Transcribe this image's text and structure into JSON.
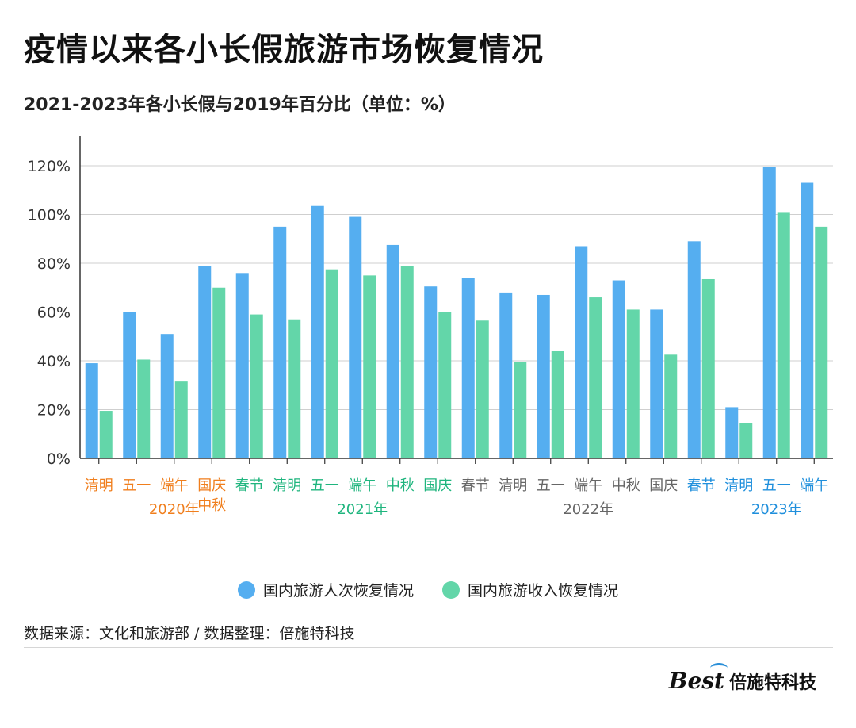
{
  "title": "疫情以来各小长假旅游市场恢复情况",
  "subtitle": "2021-2023年各小长假与2019年百分比（单位：%）",
  "colors": {
    "series_trips": "#55aef0",
    "series_revenue": "#63d6a9",
    "year_2020": "#f07e1c",
    "year_2021": "#1fb57e",
    "year_2022": "#666666",
    "year_2023": "#1f8fdc"
  },
  "chart_data": {
    "type": "bar",
    "y_ticks": [
      "0%",
      "20%",
      "40%",
      "60%",
      "80%",
      "100%",
      "120%"
    ],
    "ylim": [
      0,
      130
    ],
    "grid": true,
    "legend_position": "bottom",
    "categories": [
      "清明",
      "五一",
      "端午",
      "国庆中秋",
      "春节",
      "清明",
      "五一",
      "端午",
      "中秋",
      "国庆",
      "春节",
      "清明",
      "五一",
      "端午",
      "中秋",
      "国庆",
      "春节",
      "清明",
      "五一",
      "端午"
    ],
    "category_labels": [
      [
        "清明"
      ],
      [
        "五一"
      ],
      [
        "端午"
      ],
      [
        "国庆",
        "中秋"
      ],
      [
        "春节"
      ],
      [
        "清明"
      ],
      [
        "五一"
      ],
      [
        "端午"
      ],
      [
        "中秋"
      ],
      [
        "国庆"
      ],
      [
        "春节"
      ],
      [
        "清明"
      ],
      [
        "五一"
      ],
      [
        "端午"
      ],
      [
        "中秋"
      ],
      [
        "国庆"
      ],
      [
        "春节"
      ],
      [
        "清明"
      ],
      [
        "五一"
      ],
      [
        "端午"
      ]
    ],
    "category_years": [
      "2020年",
      "2020年",
      "2020年",
      "2020年",
      "2021年",
      "2021年",
      "2021年",
      "2021年",
      "2021年",
      "2021年",
      "2022年",
      "2022年",
      "2022年",
      "2022年",
      "2022年",
      "2022年",
      "2023年",
      "2023年",
      "2023年",
      "2023年"
    ],
    "year_groups": [
      {
        "label": "2020年",
        "center_index": 2,
        "color_key": "year_2020"
      },
      {
        "label": "2021年",
        "center_index": 7,
        "color_key": "year_2021"
      },
      {
        "label": "2022年",
        "center_index": 13,
        "color_key": "year_2022"
      },
      {
        "label": "2023年",
        "center_index": 18,
        "color_key": "year_2023"
      }
    ],
    "series": [
      {
        "name": "国内旅游人次恢复情况",
        "color_key": "series_trips",
        "values": [
          39,
          60,
          51,
          79,
          76,
          95,
          103.5,
          99,
          87.5,
          70.5,
          74,
          68,
          67,
          87,
          73,
          61,
          89,
          21,
          119.5,
          113
        ]
      },
      {
        "name": "国内旅游收入恢复情况",
        "color_key": "series_revenue",
        "values": [
          19.5,
          40.5,
          31.5,
          70,
          59,
          57,
          77.5,
          75,
          79,
          60,
          56.5,
          39.5,
          44,
          66,
          61,
          42.5,
          73.5,
          14.5,
          101,
          95
        ]
      }
    ]
  },
  "source_text": "数据来源：文化和旅游部 / 数据整理：倍施特科技",
  "logo": {
    "mark": "Best",
    "text": "倍施特科技"
  }
}
